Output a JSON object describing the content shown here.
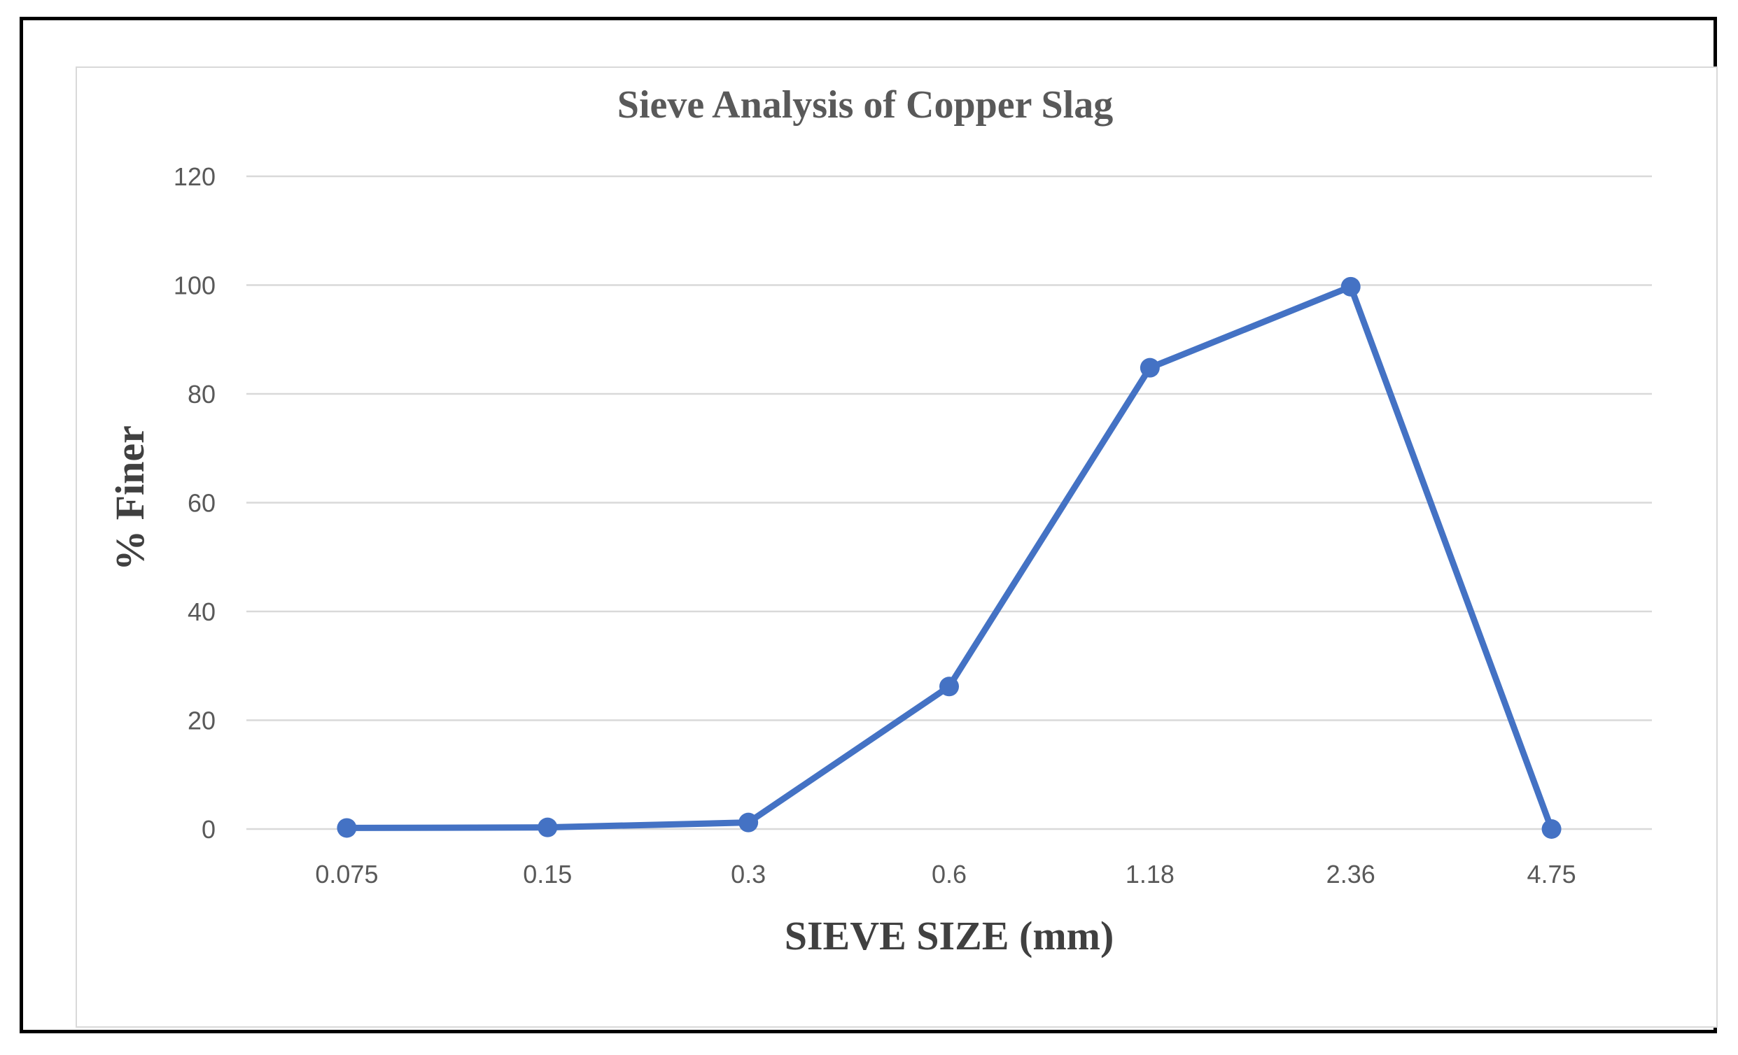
{
  "chart_data": {
    "type": "line",
    "title": "Sieve Analysis of Copper Slag",
    "xlabel": "SIEVE SIZE (mm)",
    "ylabel": "% Finer",
    "categories": [
      "0.075",
      "0.15",
      "0.3",
      "0.6",
      "1.18",
      "2.36",
      "4.75"
    ],
    "series": [
      {
        "name": "% Finer",
        "values": [
          0.2,
          0.3,
          1.2,
          26.2,
          84.8,
          99.7,
          0
        ]
      }
    ],
    "ylim": [
      0,
      120
    ],
    "yticks": [
      "0",
      "20",
      "40",
      "60",
      "80",
      "100",
      "120"
    ],
    "grid": true,
    "legend": "none",
    "colors": {
      "line": "#4472c4",
      "grid": "#d9d9d9"
    }
  }
}
